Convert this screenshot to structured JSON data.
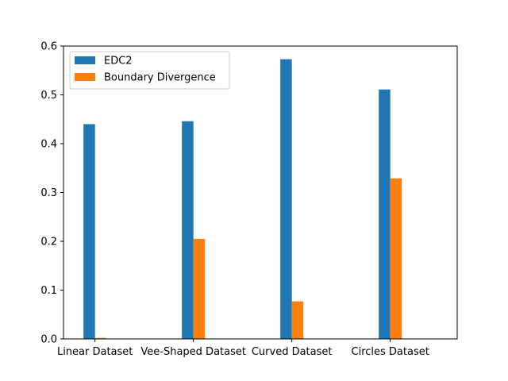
{
  "chart_data": {
    "type": "bar",
    "title": "",
    "xlabel": "",
    "ylabel": "",
    "categories": [
      "Linear Dataset",
      "Vee-Shaped Dataset",
      "Curved Dataset",
      "Circles Dataset"
    ],
    "series": [
      {
        "name": "EDC2",
        "color": "#1f77b4",
        "values": [
          0.44,
          0.446,
          0.573,
          0.511
        ]
      },
      {
        "name": "Boundary Divergence",
        "color": "#ff7f0e",
        "values": [
          0.002,
          0.205,
          0.077,
          0.329
        ]
      }
    ],
    "ylim": [
      0,
      0.6
    ],
    "yticks": [
      "0.0",
      "0.1",
      "0.2",
      "0.3",
      "0.4",
      "0.5",
      "0.6"
    ],
    "grid": false,
    "legend_position": "top-left"
  }
}
